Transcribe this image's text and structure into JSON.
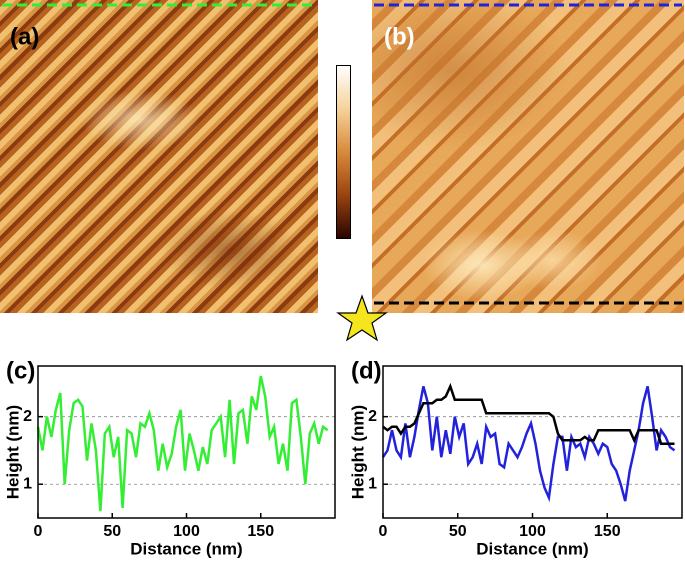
{
  "images": [
    {
      "label": "(a)"
    },
    {
      "label": "(b)"
    }
  ],
  "chart_data": [
    {
      "type": "line",
      "panel_label": "(c)",
      "xlabel": "Distance (nm)",
      "ylabel": "Height (nm)",
      "xlim": [
        0,
        200
      ],
      "ylim": [
        0.5,
        2.75
      ],
      "xticks": [
        0,
        50,
        100,
        150
      ],
      "yticks": [
        1,
        2
      ],
      "grid": true,
      "x": [
        0,
        3,
        6,
        9,
        12,
        15,
        18,
        21,
        24,
        27,
        30,
        33,
        36,
        39,
        42,
        45,
        48,
        51,
        54,
        57,
        60,
        63,
        66,
        69,
        72,
        75,
        78,
        81,
        84,
        87,
        90,
        93,
        96,
        99,
        102,
        105,
        108,
        111,
        114,
        117,
        120,
        123,
        126,
        129,
        132,
        135,
        138,
        141,
        144,
        147,
        150,
        153,
        156,
        159,
        162,
        165,
        168,
        171,
        174,
        177,
        180,
        183,
        186,
        189,
        192,
        195
      ],
      "series": [
        {
          "color": "#33ee33",
          "values": [
            1.85,
            1.5,
            2.0,
            1.7,
            2.1,
            2.35,
            1.0,
            1.8,
            2.2,
            2.25,
            2.15,
            1.35,
            1.9,
            1.5,
            0.6,
            1.75,
            1.85,
            1.4,
            1.7,
            0.65,
            1.8,
            1.75,
            1.4,
            1.9,
            1.85,
            2.05,
            1.8,
            1.2,
            1.6,
            1.25,
            1.45,
            1.85,
            2.1,
            1.2,
            1.75,
            1.5,
            1.2,
            1.55,
            1.3,
            1.8,
            1.9,
            2.0,
            1.4,
            2.25,
            1.3,
            2.05,
            2.1,
            1.6,
            2.3,
            2.1,
            2.6,
            2.3,
            1.7,
            1.85,
            1.3,
            1.6,
            1.2,
            2.2,
            2.25,
            1.7,
            1.0,
            1.75,
            1.9,
            1.6,
            1.85,
            1.8
          ]
        }
      ]
    },
    {
      "type": "line",
      "panel_label": "(d)",
      "xlabel": "Distance (nm)",
      "ylabel": "Height (nm)",
      "xlim": [
        0,
        200
      ],
      "ylim": [
        0.5,
        2.75
      ],
      "xticks": [
        0,
        50,
        100,
        150
      ],
      "yticks": [
        1,
        2
      ],
      "grid": true,
      "x": [
        0,
        3,
        6,
        9,
        12,
        15,
        18,
        21,
        24,
        27,
        30,
        33,
        36,
        39,
        42,
        45,
        48,
        51,
        54,
        57,
        60,
        63,
        66,
        69,
        72,
        75,
        78,
        81,
        84,
        87,
        90,
        93,
        96,
        99,
        102,
        105,
        108,
        111,
        114,
        117,
        120,
        123,
        126,
        129,
        132,
        135,
        138,
        141,
        144,
        147,
        150,
        153,
        156,
        159,
        162,
        165,
        168,
        171,
        174,
        177,
        180,
        183,
        186,
        189,
        192,
        195
      ],
      "series": [
        {
          "color": "#2222dd",
          "values": [
            1.4,
            1.5,
            1.8,
            1.5,
            1.4,
            1.9,
            1.4,
            1.7,
            2.1,
            2.45,
            2.2,
            1.5,
            2.0,
            1.4,
            1.8,
            1.45,
            2.0,
            1.7,
            1.9,
            1.3,
            1.4,
            1.6,
            1.3,
            1.85,
            1.7,
            1.75,
            1.3,
            1.25,
            1.6,
            1.5,
            1.4,
            1.55,
            1.75,
            1.9,
            1.6,
            1.2,
            0.95,
            0.8,
            1.3,
            1.7,
            1.7,
            1.2,
            1.7,
            1.55,
            1.6,
            1.4,
            1.7,
            1.6,
            1.45,
            1.6,
            1.55,
            1.3,
            1.2,
            1.0,
            0.75,
            1.2,
            1.5,
            1.8,
            2.2,
            2.45,
            2.0,
            1.5,
            1.8,
            1.7,
            1.55,
            1.5
          ]
        },
        {
          "color": "#000000",
          "values": [
            1.85,
            1.8,
            1.85,
            1.85,
            1.75,
            1.85,
            1.85,
            1.9,
            2.05,
            2.2,
            2.2,
            2.2,
            2.25,
            2.25,
            2.3,
            2.45,
            2.25,
            2.25,
            2.25,
            2.25,
            2.25,
            2.25,
            2.25,
            2.05,
            2.05,
            2.05,
            2.05,
            2.05,
            2.05,
            2.05,
            2.05,
            2.05,
            2.05,
            2.05,
            2.05,
            2.05,
            2.05,
            2.05,
            2.0,
            1.75,
            1.65,
            1.65,
            1.65,
            1.65,
            1.65,
            1.7,
            1.65,
            1.65,
            1.8,
            1.8,
            1.8,
            1.8,
            1.8,
            1.8,
            1.8,
            1.8,
            1.65,
            1.8,
            1.8,
            1.8,
            1.8,
            1.8,
            1.6,
            1.6,
            1.6,
            1.6
          ]
        }
      ]
    }
  ]
}
